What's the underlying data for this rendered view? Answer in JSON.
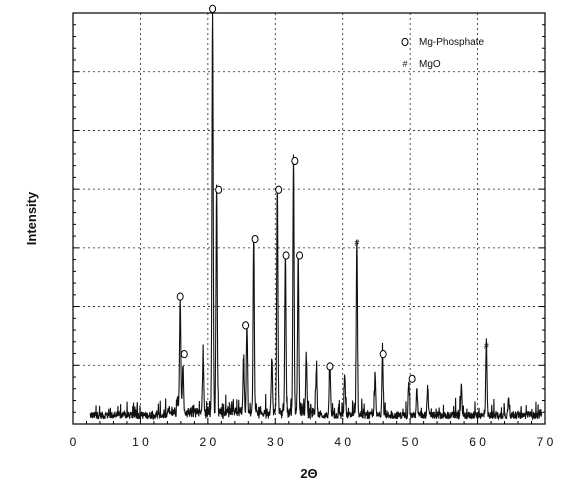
{
  "chart_data": {
    "type": "line",
    "title": "",
    "xlabel": "2Θ",
    "ylabel": "Intensity",
    "xlim": [
      0,
      70
    ],
    "ylim": [
      0,
      100
    ],
    "grid": true,
    "legend_position": "top-right",
    "x_ticks": [
      0,
      10,
      20,
      30,
      40,
      50,
      60,
      70
    ],
    "x_tick_labels": [
      "0",
      "1 0",
      "2 0",
      "3 0",
      "4 0",
      "5 0",
      "6 0",
      "7 0"
    ],
    "legend": [
      {
        "symbol": "o",
        "label": "Mg-Phosphate"
      },
      {
        "symbol": "#",
        "label": "MgO"
      }
    ],
    "peaks": [
      {
        "x": 15.5,
        "y": 4
      },
      {
        "x": 15.9,
        "y": 28
      },
      {
        "x": 16.3,
        "y": 12
      },
      {
        "x": 19.3,
        "y": 14
      },
      {
        "x": 20.7,
        "y": 99
      },
      {
        "x": 21.3,
        "y": 55
      },
      {
        "x": 25.3,
        "y": 13
      },
      {
        "x": 25.8,
        "y": 21
      },
      {
        "x": 26.8,
        "y": 43
      },
      {
        "x": 29.5,
        "y": 13
      },
      {
        "x": 30.3,
        "y": 55
      },
      {
        "x": 31.5,
        "y": 38
      },
      {
        "x": 32.7,
        "y": 62
      },
      {
        "x": 33.4,
        "y": 38
      },
      {
        "x": 34.6,
        "y": 14
      },
      {
        "x": 36.1,
        "y": 12
      },
      {
        "x": 38.1,
        "y": 13
      },
      {
        "x": 40.3,
        "y": 10
      },
      {
        "x": 42.1,
        "y": 43
      },
      {
        "x": 44.8,
        "y": 10
      },
      {
        "x": 45.9,
        "y": 15
      },
      {
        "x": 49.8,
        "y": 9
      },
      {
        "x": 51.0,
        "y": 6
      },
      {
        "x": 52.6,
        "y": 7
      },
      {
        "x": 57.6,
        "y": 7
      },
      {
        "x": 61.3,
        "y": 18
      },
      {
        "x": 64.6,
        "y": 5
      }
    ],
    "annotations": [
      {
        "x": 15.9,
        "y": 31,
        "symbol": "o"
      },
      {
        "x": 16.5,
        "y": 17,
        "symbol": "o"
      },
      {
        "x": 20.7,
        "y": 101,
        "symbol": "o"
      },
      {
        "x": 21.6,
        "y": 57,
        "symbol": "o"
      },
      {
        "x": 25.6,
        "y": 24,
        "symbol": "o"
      },
      {
        "x": 27.0,
        "y": 45,
        "symbol": "o"
      },
      {
        "x": 30.5,
        "y": 57,
        "symbol": "o"
      },
      {
        "x": 31.6,
        "y": 41,
        "symbol": "o"
      },
      {
        "x": 32.9,
        "y": 64,
        "symbol": "o"
      },
      {
        "x": 33.6,
        "y": 41,
        "symbol": "o"
      },
      {
        "x": 38.1,
        "y": 14,
        "symbol": "o"
      },
      {
        "x": 42.1,
        "y": 44,
        "symbol": "#"
      },
      {
        "x": 46.0,
        "y": 17,
        "symbol": "o"
      },
      {
        "x": 50.3,
        "y": 11,
        "symbol": "o"
      },
      {
        "x": 61.3,
        "y": 19,
        "symbol": "#"
      }
    ]
  }
}
